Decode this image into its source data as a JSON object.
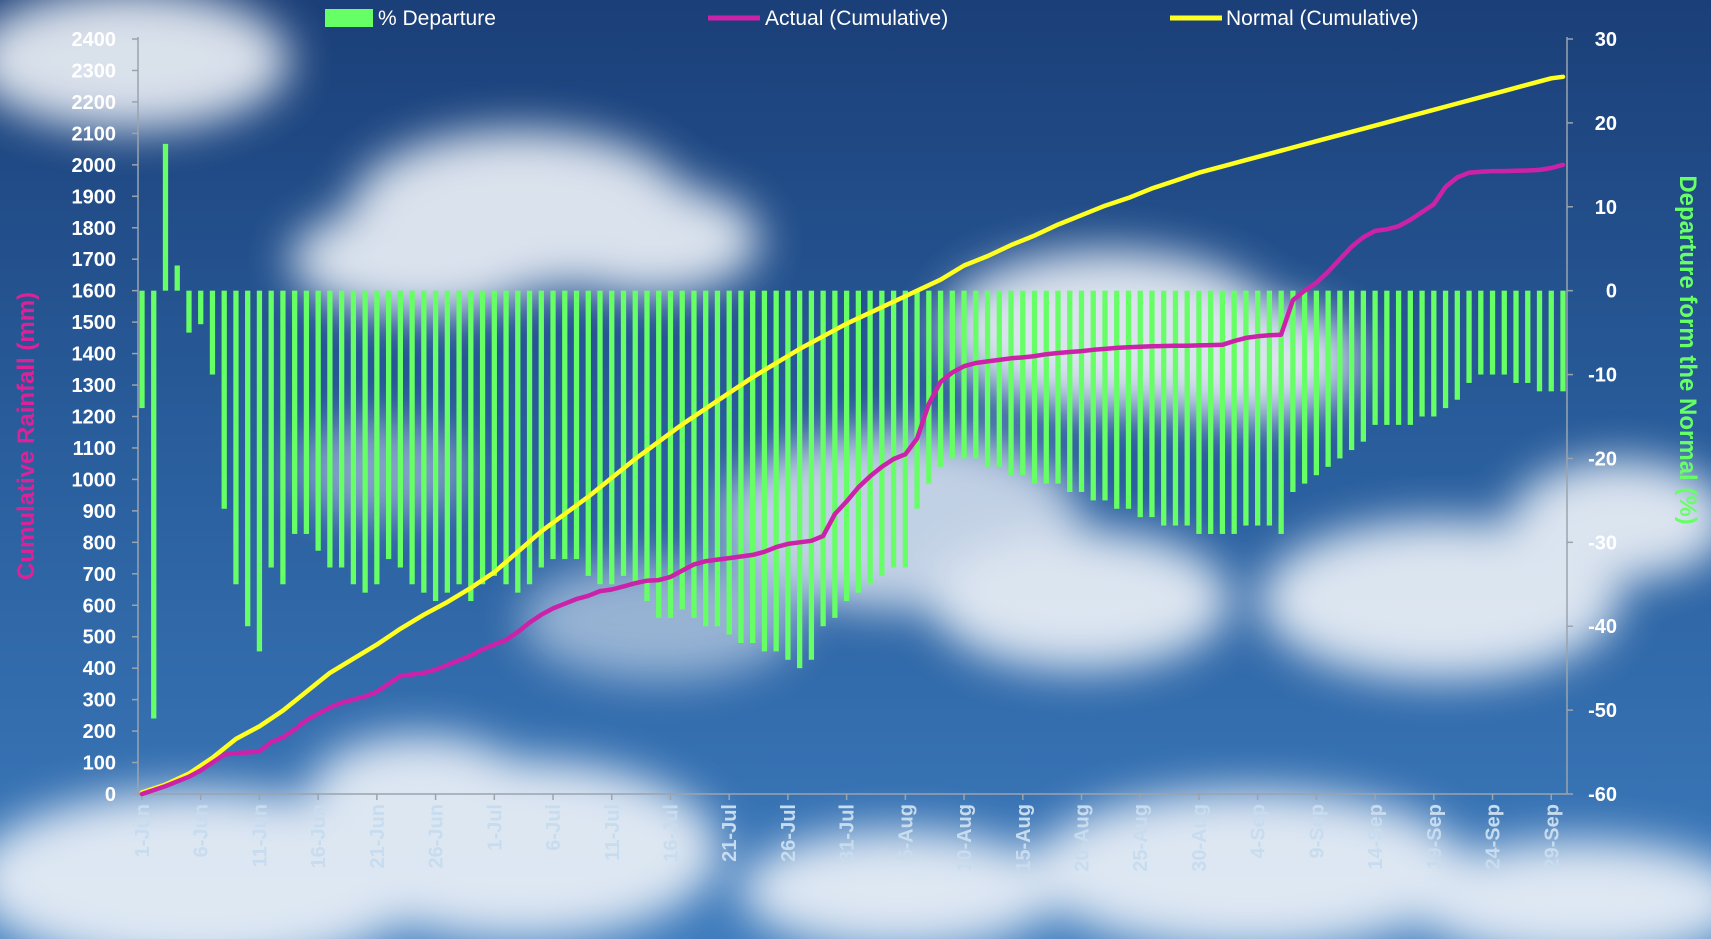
{
  "chart_data": {
    "type": "bar+line",
    "legend_position": "top",
    "legend": [
      {
        "name": "% Departure",
        "key": "departure"
      },
      {
        "name": "Actual (Cumulative)",
        "key": "actual"
      },
      {
        "name": "Normal (Cumulative)",
        "key": "normal"
      }
    ],
    "y_left": {
      "label": "Cumulative Rainfall (mm)",
      "range": [
        0,
        2400
      ],
      "ticks": [
        0,
        100,
        200,
        300,
        400,
        500,
        600,
        700,
        800,
        900,
        1000,
        1100,
        1200,
        1300,
        1400,
        1500,
        1600,
        1700,
        1800,
        1900,
        2000,
        2100,
        2200,
        2300,
        2400
      ]
    },
    "y_right": {
      "label": "Departure form the Normal (%)",
      "range": [
        -60,
        30
      ],
      "ticks": [
        -60,
        -50,
        -40,
        -30,
        -20,
        -10,
        0,
        10,
        20,
        30
      ]
    },
    "x": {
      "ticks": [
        {
          "day": 1,
          "label": "1-Jun"
        },
        {
          "day": 6,
          "label": "6-Jun"
        },
        {
          "day": 11,
          "label": "11-Jun"
        },
        {
          "day": 16,
          "label": "16-Jun"
        },
        {
          "day": 21,
          "label": "21-Jun"
        },
        {
          "day": 26,
          "label": "26-Jun"
        },
        {
          "day": 31,
          "label": "1-Jul"
        },
        {
          "day": 36,
          "label": "6-Jul"
        },
        {
          "day": 41,
          "label": "11-Jul"
        },
        {
          "day": 46,
          "label": "16-Jul"
        },
        {
          "day": 51,
          "label": "21-Jul"
        },
        {
          "day": 56,
          "label": "26-Jul"
        },
        {
          "day": 61,
          "label": "31-Jul"
        },
        {
          "day": 66,
          "label": "5-Aug"
        },
        {
          "day": 71,
          "label": "10-Aug"
        },
        {
          "day": 76,
          "label": "15-Aug"
        },
        {
          "day": 81,
          "label": "20-Aug"
        },
        {
          "day": 86,
          "label": "25-Aug"
        },
        {
          "day": 91,
          "label": "30-Aug"
        },
        {
          "day": 96,
          "label": "4-Sep"
        },
        {
          "day": 101,
          "label": "9-Sep"
        },
        {
          "day": 106,
          "label": "14-Sep"
        },
        {
          "day": 111,
          "label": "19-Sep"
        },
        {
          "day": 116,
          "label": "24-Sep"
        },
        {
          "day": 121,
          "label": "29-Sep"
        }
      ]
    },
    "series": [
      {
        "name": "% Departure",
        "key": "departure",
        "type": "bar",
        "axis": "right",
        "color": "#66ff66",
        "values": [
          -14,
          -51,
          17.5,
          3,
          -5,
          -4,
          -10,
          -26,
          -35,
          -40,
          -43,
          -33,
          -35,
          -29,
          -29,
          -31,
          -33,
          -33,
          -35,
          -36,
          -35,
          -32,
          -33,
          -35,
          -36,
          -37,
          -36,
          -35,
          -37,
          -35,
          -34,
          -35,
          -36,
          -35,
          -33,
          -32,
          -32,
          -32,
          -34,
          -35,
          -35,
          -34,
          -35,
          -37,
          -39,
          -39,
          -38,
          -39,
          -40,
          -40,
          -41,
          -42,
          -42,
          -43,
          -43,
          -44,
          -45,
          -44,
          -40,
          -39,
          -37,
          -36,
          -35,
          -34,
          -33,
          -33,
          -26,
          -23,
          -21,
          -20,
          -20,
          -20,
          -21,
          -21,
          -22,
          -22,
          -23,
          -23,
          -23,
          -24,
          -24,
          -25,
          -25,
          -26,
          -26,
          -27,
          -27,
          -28,
          -28,
          -28,
          -29,
          -29,
          -29,
          -29,
          -28,
          -28,
          -28,
          -29,
          -24,
          -23,
          -22,
          -21,
          -20,
          -19,
          -18,
          -16,
          -16,
          -16,
          -16,
          -15,
          -15,
          -14,
          -13,
          -11,
          -10,
          -10,
          -10,
          -11,
          -11,
          -12,
          -12,
          -12
        ]
      },
      {
        "name": "Actual (Cumulative)",
        "key": "actual",
        "type": "line",
        "axis": "left",
        "color": "#cc22aa",
        "points": [
          [
            1,
            0
          ],
          [
            3,
            25
          ],
          [
            5,
            55
          ],
          [
            6,
            75
          ],
          [
            7,
            100
          ],
          [
            8,
            125
          ],
          [
            9,
            130
          ],
          [
            10,
            132
          ],
          [
            11,
            135
          ],
          [
            12,
            165
          ],
          [
            13,
            180
          ],
          [
            14,
            205
          ],
          [
            15,
            235
          ],
          [
            16,
            255
          ],
          [
            17,
            275
          ],
          [
            18,
            290
          ],
          [
            19,
            300
          ],
          [
            20,
            310
          ],
          [
            21,
            325
          ],
          [
            22,
            350
          ],
          [
            23,
            375
          ],
          [
            24,
            380
          ],
          [
            25,
            385
          ],
          [
            26,
            395
          ],
          [
            27,
            410
          ],
          [
            28,
            425
          ],
          [
            29,
            440
          ],
          [
            30,
            460
          ],
          [
            31,
            475
          ],
          [
            32,
            490
          ],
          [
            33,
            515
          ],
          [
            34,
            545
          ],
          [
            35,
            570
          ],
          [
            36,
            590
          ],
          [
            37,
            605
          ],
          [
            38,
            620
          ],
          [
            39,
            630
          ],
          [
            40,
            645
          ],
          [
            41,
            650
          ],
          [
            42,
            660
          ],
          [
            43,
            670
          ],
          [
            44,
            678
          ],
          [
            45,
            680
          ],
          [
            46,
            690
          ],
          [
            47,
            710
          ],
          [
            48,
            730
          ],
          [
            49,
            740
          ],
          [
            50,
            745
          ],
          [
            51,
            750
          ],
          [
            52,
            755
          ],
          [
            53,
            760
          ],
          [
            54,
            770
          ],
          [
            55,
            785
          ],
          [
            56,
            795
          ],
          [
            57,
            800
          ],
          [
            58,
            805
          ],
          [
            59,
            820
          ],
          [
            60,
            890
          ],
          [
            61,
            930
          ],
          [
            62,
            975
          ],
          [
            63,
            1010
          ],
          [
            64,
            1040
          ],
          [
            65,
            1065
          ],
          [
            66,
            1080
          ],
          [
            67,
            1130
          ],
          [
            68,
            1240
          ],
          [
            69,
            1310
          ],
          [
            70,
            1340
          ],
          [
            71,
            1360
          ],
          [
            72,
            1370
          ],
          [
            73,
            1375
          ],
          [
            74,
            1380
          ],
          [
            75,
            1385
          ],
          [
            76,
            1388
          ],
          [
            77,
            1392
          ],
          [
            78,
            1398
          ],
          [
            79,
            1402
          ],
          [
            80,
            1405
          ],
          [
            81,
            1408
          ],
          [
            82,
            1412
          ],
          [
            83,
            1415
          ],
          [
            84,
            1418
          ],
          [
            85,
            1420
          ],
          [
            86,
            1422
          ],
          [
            87,
            1423
          ],
          [
            88,
            1424
          ],
          [
            89,
            1425
          ],
          [
            90,
            1425
          ],
          [
            91,
            1426
          ],
          [
            92,
            1427
          ],
          [
            93,
            1428
          ],
          [
            94,
            1440
          ],
          [
            95,
            1450
          ],
          [
            96,
            1455
          ],
          [
            97,
            1458
          ],
          [
            98,
            1460
          ],
          [
            99,
            1570
          ],
          [
            100,
            1600
          ],
          [
            101,
            1625
          ],
          [
            102,
            1660
          ],
          [
            103,
            1700
          ],
          [
            104,
            1740
          ],
          [
            105,
            1770
          ],
          [
            106,
            1790
          ],
          [
            107,
            1795
          ],
          [
            108,
            1805
          ],
          [
            109,
            1825
          ],
          [
            110,
            1850
          ],
          [
            111,
            1875
          ],
          [
            112,
            1930
          ],
          [
            113,
            1960
          ],
          [
            114,
            1975
          ],
          [
            115,
            1978
          ],
          [
            116,
            1980
          ],
          [
            117,
            1980
          ],
          [
            118,
            1981
          ],
          [
            119,
            1982
          ],
          [
            120,
            1984
          ],
          [
            121,
            1990
          ],
          [
            122,
            2000
          ]
        ]
      },
      {
        "name": "Normal (Cumulative)",
        "key": "normal",
        "type": "line",
        "axis": "left",
        "color": "#ffff22",
        "points": [
          [
            1,
            5
          ],
          [
            3,
            30
          ],
          [
            5,
            65
          ],
          [
            7,
            115
          ],
          [
            9,
            175
          ],
          [
            11,
            215
          ],
          [
            13,
            265
          ],
          [
            15,
            325
          ],
          [
            17,
            385
          ],
          [
            19,
            430
          ],
          [
            21,
            475
          ],
          [
            23,
            525
          ],
          [
            25,
            570
          ],
          [
            27,
            610
          ],
          [
            29,
            655
          ],
          [
            31,
            705
          ],
          [
            33,
            770
          ],
          [
            35,
            835
          ],
          [
            37,
            890
          ],
          [
            39,
            945
          ],
          [
            41,
            1005
          ],
          [
            43,
            1065
          ],
          [
            45,
            1120
          ],
          [
            47,
            1175
          ],
          [
            49,
            1225
          ],
          [
            51,
            1275
          ],
          [
            53,
            1325
          ],
          [
            55,
            1370
          ],
          [
            57,
            1415
          ],
          [
            59,
            1455
          ],
          [
            61,
            1495
          ],
          [
            63,
            1530
          ],
          [
            65,
            1565
          ],
          [
            67,
            1600
          ],
          [
            69,
            1635
          ],
          [
            71,
            1680
          ],
          [
            73,
            1710
          ],
          [
            75,
            1745
          ],
          [
            77,
            1775
          ],
          [
            79,
            1810
          ],
          [
            81,
            1840
          ],
          [
            83,
            1870
          ],
          [
            85,
            1895
          ],
          [
            87,
            1925
          ],
          [
            89,
            1950
          ],
          [
            91,
            1975
          ],
          [
            93,
            1995
          ],
          [
            95,
            2015
          ],
          [
            97,
            2035
          ],
          [
            99,
            2055
          ],
          [
            101,
            2075
          ],
          [
            103,
            2095
          ],
          [
            105,
            2115
          ],
          [
            107,
            2135
          ],
          [
            109,
            2155
          ],
          [
            111,
            2175
          ],
          [
            113,
            2195
          ],
          [
            115,
            2215
          ],
          [
            117,
            2235
          ],
          [
            119,
            2255
          ],
          [
            121,
            2275
          ],
          [
            122,
            2280
          ]
        ]
      }
    ]
  }
}
